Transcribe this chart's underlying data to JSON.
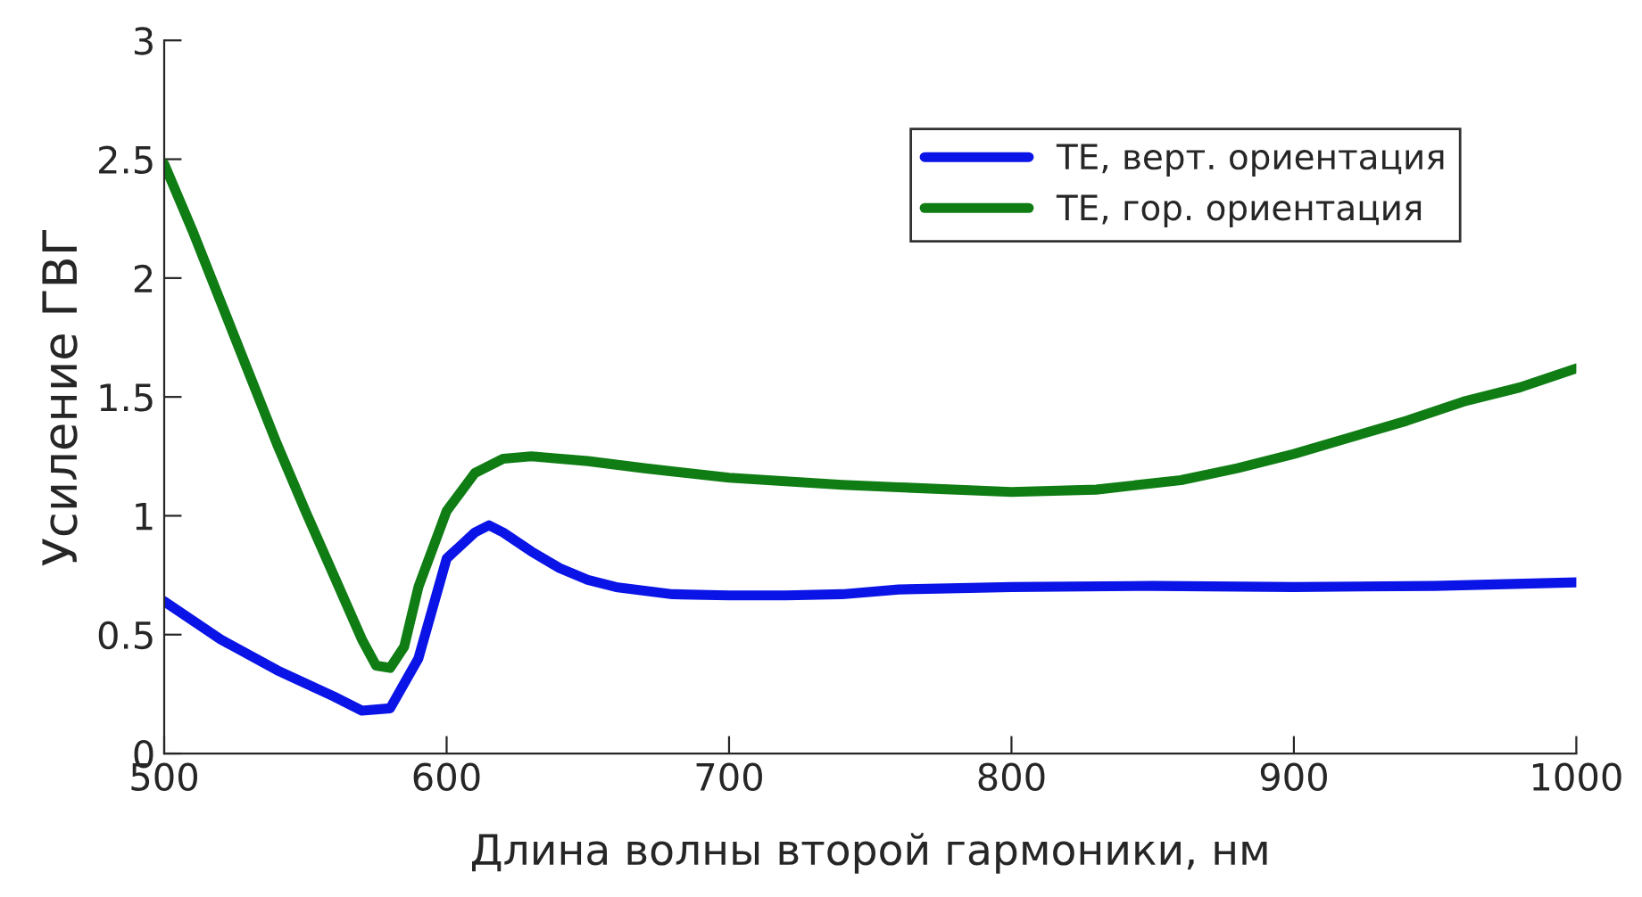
{
  "chart_data": {
    "type": "line",
    "xlabel": "Длина волны второй гармоники, нм",
    "ylabel": "Усиление ГВГ",
    "xlim": [
      500,
      1000
    ],
    "ylim": [
      0,
      3
    ],
    "xticks": [
      500,
      600,
      700,
      800,
      900,
      1000
    ],
    "yticks": [
      0,
      0.5,
      1,
      1.5,
      2,
      2.5,
      3
    ],
    "grid": false,
    "legend": "top right",
    "marker": "none",
    "line_style": "solid",
    "series": [
      {
        "name": "TE, верт. ориентация",
        "color": "#0a14e6",
        "x": [
          500,
          520,
          540,
          560,
          570,
          580,
          590,
          600,
          610,
          615,
          620,
          630,
          640,
          650,
          660,
          680,
          700,
          720,
          740,
          760,
          800,
          850,
          900,
          950,
          1000
        ],
        "values": [
          0.64,
          0.48,
          0.35,
          0.24,
          0.18,
          0.19,
          0.4,
          0.82,
          0.93,
          0.96,
          0.93,
          0.85,
          0.78,
          0.73,
          0.7,
          0.67,
          0.665,
          0.665,
          0.67,
          0.69,
          0.7,
          0.705,
          0.7,
          0.705,
          0.72
        ]
      },
      {
        "name": "TE, гор. ориентация",
        "color": "#0f7d14",
        "x": [
          500,
          510,
          520,
          530,
          540,
          550,
          560,
          570,
          575,
          580,
          585,
          590,
          600,
          610,
          620,
          630,
          650,
          670,
          700,
          740,
          760,
          800,
          830,
          860,
          880,
          900,
          920,
          940,
          960,
          980,
          1000
        ],
        "values": [
          2.48,
          2.2,
          1.9,
          1.6,
          1.3,
          1.02,
          0.75,
          0.48,
          0.37,
          0.36,
          0.45,
          0.7,
          1.02,
          1.18,
          1.24,
          1.25,
          1.23,
          1.2,
          1.16,
          1.13,
          1.12,
          1.1,
          1.11,
          1.15,
          1.2,
          1.26,
          1.33,
          1.4,
          1.48,
          1.54,
          1.62
        ]
      }
    ]
  }
}
